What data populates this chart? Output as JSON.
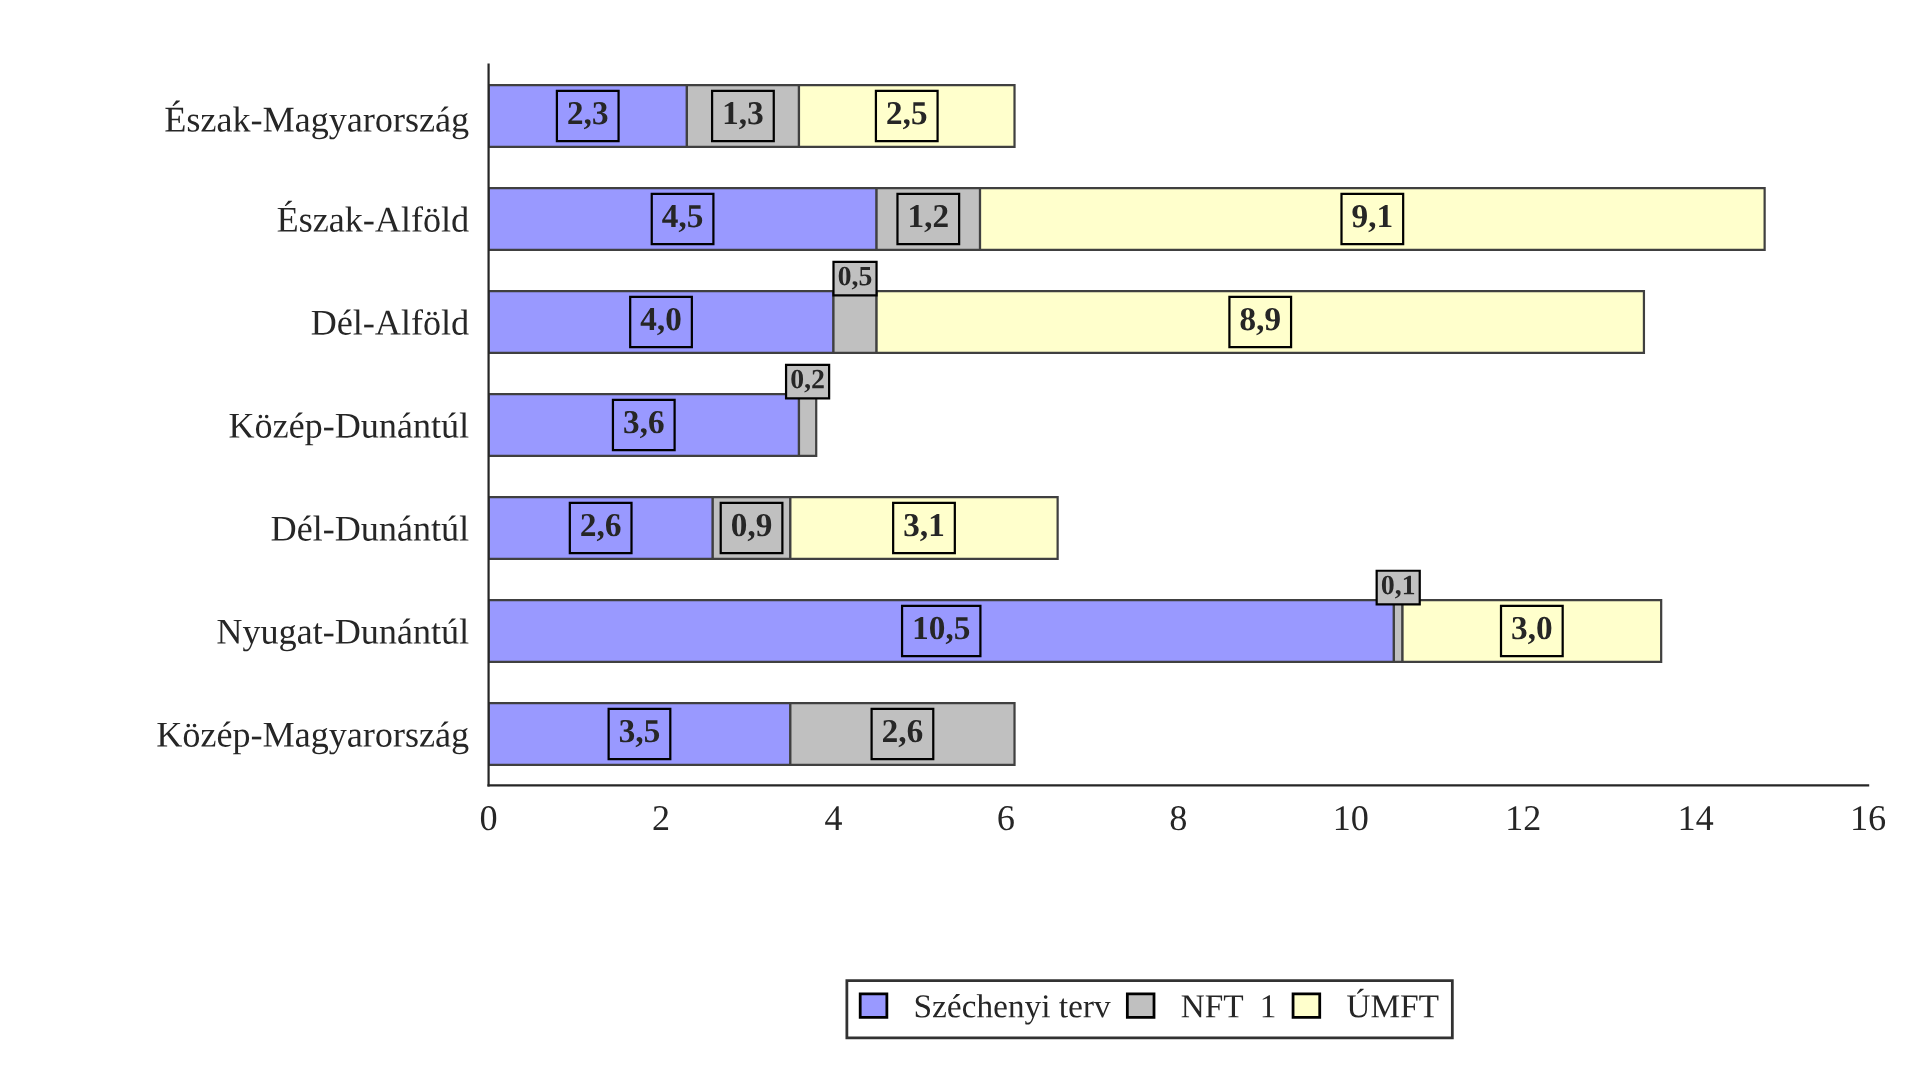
{
  "chart_data": {
    "type": "bar",
    "orientation": "horizontal",
    "stacked": true,
    "categories": [
      "Észak-Magyarország",
      "Észak-Alföld",
      "Dél-Alföld",
      "Közép-Dunántúl",
      "Dél-Dunántúl",
      "Nyugat-Dunántúl",
      "Közép-Magyarország"
    ],
    "series": [
      {
        "name": "Széchenyi terv",
        "color": "#9999ff",
        "values": [
          2.3,
          4.5,
          4.0,
          3.6,
          2.6,
          10.5,
          3.5
        ],
        "value_labels": [
          "2,3",
          "4,5",
          "4,0",
          "3,6",
          "2,6",
          "10,5",
          "3,5"
        ]
      },
      {
        "name": "NFT  1",
        "color": "#c0c0c0",
        "values": [
          1.3,
          1.2,
          0.5,
          0.2,
          0.9,
          0.1,
          2.6
        ],
        "value_labels": [
          "1,3",
          "1,2",
          "0,5",
          "0,2",
          "0,9",
          "0,1",
          "2,6"
        ]
      },
      {
        "name": "ÚMFT",
        "color": "#ffffcc",
        "values": [
          2.5,
          9.1,
          8.9,
          null,
          3.1,
          3.0,
          null
        ],
        "value_labels": [
          "2,5",
          "9,1",
          "8,9",
          null,
          "3,1",
          "3,0",
          null
        ]
      }
    ],
    "xlim": [
      0,
      16
    ],
    "xticks": [
      0,
      2,
      4,
      6,
      8,
      10,
      12,
      14,
      16
    ],
    "grid": false,
    "legend": "bottom"
  }
}
